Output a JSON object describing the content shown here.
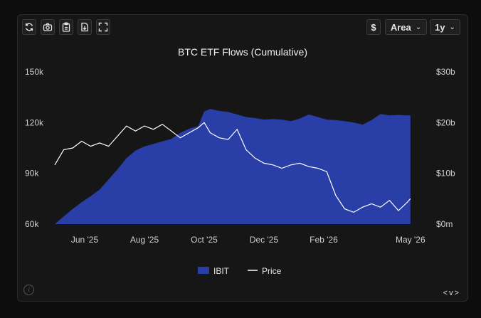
{
  "toolbar": {
    "currency": "$",
    "chart_type": "Area",
    "range": "1y",
    "icons": [
      "refresh-icon",
      "camera-icon",
      "clipboard-icon",
      "download-icon",
      "fullscreen-icon"
    ]
  },
  "colors": {
    "bg": "#161616",
    "area": "#2a3ea8",
    "price_line": "#ffffff",
    "text": "#e8e8e8",
    "muted": "#cfcfcf"
  },
  "nav": "<v>",
  "chart_data": {
    "type": "area",
    "title": "BTC ETF Flows (Cumulative)",
    "x_range": [
      0,
      12
    ],
    "x_ticks": [
      {
        "x": 1,
        "label": "Jun '25"
      },
      {
        "x": 3,
        "label": "Aug '25"
      },
      {
        "x": 5,
        "label": "Oct '25"
      },
      {
        "x": 7,
        "label": "Dec '25"
      },
      {
        "x": 9,
        "label": "Feb '26"
      },
      {
        "x": 11.9,
        "label": "May '26"
      }
    ],
    "y_left": {
      "range": [
        60,
        150
      ],
      "ticks": [
        60,
        90,
        120,
        150
      ],
      "labels": [
        "60k",
        "90k",
        "120k",
        "150k"
      ]
    },
    "y_right": {
      "range": [
        0,
        30
      ],
      "ticks": [
        0,
        10,
        20,
        30
      ],
      "labels": [
        "$0m",
        "$10b",
        "$20b",
        "$30b"
      ]
    },
    "series": [
      {
        "name": "IBIT",
        "type": "area",
        "axis": "right",
        "color": "#2a3ea8",
        "x": [
          0.0,
          0.3,
          0.6,
          0.9,
          1.2,
          1.5,
          1.8,
          2.1,
          2.4,
          2.7,
          3.0,
          3.3,
          3.6,
          3.9,
          4.2,
          4.5,
          4.8,
          5.0,
          5.2,
          5.5,
          5.8,
          6.1,
          6.4,
          6.7,
          7.0,
          7.3,
          7.6,
          7.9,
          8.2,
          8.5,
          8.8,
          9.1,
          9.4,
          9.7,
          10.0,
          10.3,
          10.6,
          10.9,
          11.2,
          11.5,
          11.8,
          11.9
        ],
        "values": [
          0.0,
          1.5,
          3.0,
          4.3,
          5.5,
          6.8,
          8.8,
          10.8,
          13.0,
          14.5,
          15.3,
          15.8,
          16.3,
          16.8,
          18.0,
          18.8,
          19.3,
          22.2,
          22.7,
          22.3,
          22.1,
          21.6,
          21.1,
          20.9,
          20.6,
          20.7,
          20.6,
          20.3,
          20.8,
          21.6,
          21.1,
          20.6,
          20.5,
          20.3,
          20.0,
          19.6,
          20.5,
          21.7,
          21.4,
          21.5,
          21.4,
          21.4
        ]
      },
      {
        "name": "Price",
        "type": "line",
        "axis": "left",
        "color": "#ffffff",
        "x": [
          0.0,
          0.3,
          0.6,
          0.9,
          1.2,
          1.5,
          1.8,
          2.1,
          2.4,
          2.7,
          3.0,
          3.3,
          3.6,
          3.9,
          4.2,
          4.5,
          4.8,
          5.0,
          5.2,
          5.5,
          5.8,
          6.1,
          6.4,
          6.7,
          7.0,
          7.3,
          7.6,
          7.9,
          8.2,
          8.5,
          8.8,
          9.1,
          9.4,
          9.7,
          10.0,
          10.3,
          10.6,
          10.9,
          11.2,
          11.5,
          11.8,
          11.9
        ],
        "values": [
          95,
          104,
          105,
          109,
          106,
          108,
          106,
          112,
          118,
          115,
          118,
          116,
          119,
          115,
          111,
          114,
          117,
          120,
          114,
          111,
          110,
          116,
          104,
          99,
          96,
          95,
          93,
          95,
          96,
          94,
          93,
          91,
          77,
          69,
          67,
          70,
          72,
          70,
          74,
          68,
          73,
          75
        ]
      }
    ],
    "legend": {
      "placement": "bottom-center",
      "items": [
        "IBIT",
        "Price"
      ]
    }
  }
}
